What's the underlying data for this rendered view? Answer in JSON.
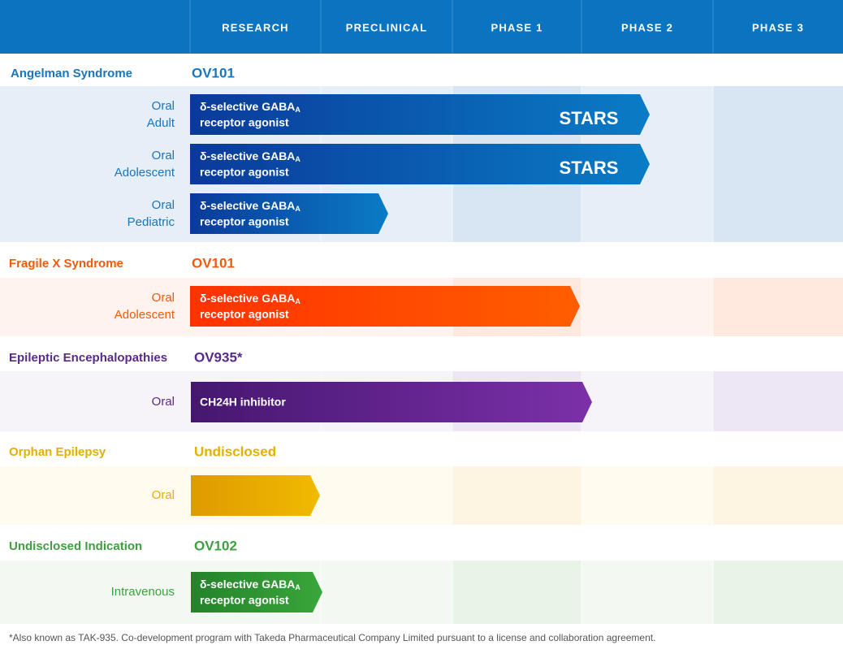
{
  "header": {
    "phases": [
      "RESEARCH",
      "PRECLINICAL",
      "PHASE 1",
      "PHASE 2",
      "PHASE 3"
    ]
  },
  "programs": [
    {
      "indication": "Angelman Syndrome",
      "compound": "OV101",
      "rows": [
        {
          "route": "Oral",
          "population": "Adult",
          "bar_text": "δ-selective GABA",
          "bar_sub": "A",
          "bar_text2": "receptor agonist",
          "logo": "STARS"
        },
        {
          "route": "Oral",
          "population": "Adolescent",
          "bar_text": "δ-selective GABA",
          "bar_sub": "A",
          "bar_text2": "receptor agonist",
          "logo": "STARS"
        },
        {
          "route": "Oral",
          "population": "Pediatric",
          "bar_text": "δ-selective GABA",
          "bar_sub": "A",
          "bar_text2": "receptor agonist"
        }
      ]
    },
    {
      "indication": "Fragile X Syndrome",
      "compound": "OV101",
      "rows": [
        {
          "route": "Oral",
          "population": "Adolescent",
          "bar_text": "δ-selective GABA",
          "bar_sub": "A",
          "bar_text2": "receptor agonist"
        }
      ]
    },
    {
      "indication": "Epileptic Encephalopathies",
      "compound": "OV935*",
      "rows": [
        {
          "route": "Oral",
          "bar_text": "CH24H inhibitor"
        }
      ]
    },
    {
      "indication": "Orphan Epilepsy",
      "compound": "Undisclosed",
      "rows": [
        {
          "route": "Oral"
        }
      ]
    },
    {
      "indication": "Undisclosed Indication",
      "compound": "OV102",
      "rows": [
        {
          "route": "Intravenous",
          "bar_text": "δ-selective GABA",
          "bar_sub": "A",
          "bar_text2": "receptor agonist"
        }
      ]
    }
  ],
  "footnote": "*Also known as TAK-935. Co-development program with Takeda Pharmaceutical Company Limited pursuant to a license and collaboration agreement."
}
